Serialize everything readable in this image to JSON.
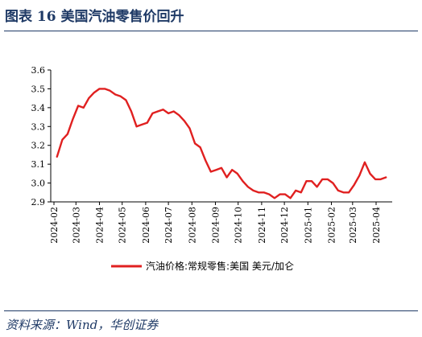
{
  "figure": {
    "title": "图表 16   美国汽油零售价回升",
    "source": "资料来源：Wind，华创证券"
  },
  "colors": {
    "accent": "#1f3a66",
    "series": "#e02020"
  },
  "chart_data": {
    "type": "line",
    "title": "",
    "xlabel": "",
    "ylabel": "",
    "ylim": [
      2.9,
      3.6
    ],
    "yticks": [
      2.9,
      3.0,
      3.1,
      3.2,
      3.3,
      3.4,
      3.5,
      3.6
    ],
    "ytick_labels": [
      "2.9",
      "3.0",
      "3.1",
      "3.2",
      "3.3",
      "3.4",
      "3.5",
      "3.6"
    ],
    "xticks": [
      "2024-02",
      "2024-03",
      "2024-04",
      "2024-05",
      "2024-06",
      "2024-07",
      "2024-08",
      "2024-09",
      "2024-10",
      "2024-11",
      "2024-12",
      "2025-01",
      "2025-02",
      "2025-03",
      "2025-04"
    ],
    "grid": false,
    "legend_position": "bottom",
    "series": [
      {
        "name": "汽油价格:常规零售:美国 美元/加仑",
        "points": [
          [
            "2024-02-05",
            3.14
          ],
          [
            "2024-02-12",
            3.23
          ],
          [
            "2024-02-19",
            3.26
          ],
          [
            "2024-02-26",
            3.34
          ],
          [
            "2024-03-04",
            3.41
          ],
          [
            "2024-03-11",
            3.4
          ],
          [
            "2024-03-18",
            3.45
          ],
          [
            "2024-03-25",
            3.48
          ],
          [
            "2024-04-01",
            3.5
          ],
          [
            "2024-04-08",
            3.5
          ],
          [
            "2024-04-15",
            3.49
          ],
          [
            "2024-04-22",
            3.47
          ],
          [
            "2024-04-29",
            3.46
          ],
          [
            "2024-05-06",
            3.44
          ],
          [
            "2024-05-13",
            3.38
          ],
          [
            "2024-05-20",
            3.3
          ],
          [
            "2024-05-27",
            3.31
          ],
          [
            "2024-06-03",
            3.32
          ],
          [
            "2024-06-10",
            3.37
          ],
          [
            "2024-06-17",
            3.38
          ],
          [
            "2024-06-24",
            3.39
          ],
          [
            "2024-07-01",
            3.37
          ],
          [
            "2024-07-08",
            3.38
          ],
          [
            "2024-07-15",
            3.36
          ],
          [
            "2024-07-22",
            3.33
          ],
          [
            "2024-07-29",
            3.29
          ],
          [
            "2024-08-05",
            3.21
          ],
          [
            "2024-08-12",
            3.19
          ],
          [
            "2024-08-19",
            3.12
          ],
          [
            "2024-08-26",
            3.06
          ],
          [
            "2024-09-02",
            3.07
          ],
          [
            "2024-09-09",
            3.08
          ],
          [
            "2024-09-16",
            3.03
          ],
          [
            "2024-09-23",
            3.07
          ],
          [
            "2024-09-30",
            3.05
          ],
          [
            "2024-10-07",
            3.01
          ],
          [
            "2024-10-14",
            2.98
          ],
          [
            "2024-10-21",
            2.96
          ],
          [
            "2024-10-28",
            2.95
          ],
          [
            "2024-11-04",
            2.95
          ],
          [
            "2024-11-11",
            2.94
          ],
          [
            "2024-11-18",
            2.92
          ],
          [
            "2024-11-25",
            2.94
          ],
          [
            "2024-12-02",
            2.94
          ],
          [
            "2024-12-09",
            2.92
          ],
          [
            "2024-12-16",
            2.96
          ],
          [
            "2024-12-23",
            2.95
          ],
          [
            "2024-12-30",
            3.01
          ],
          [
            "2025-01-06",
            3.01
          ],
          [
            "2025-01-13",
            2.98
          ],
          [
            "2025-01-20",
            3.02
          ],
          [
            "2025-01-27",
            3.02
          ],
          [
            "2025-02-03",
            3.0
          ],
          [
            "2025-02-10",
            2.96
          ],
          [
            "2025-02-17",
            2.95
          ],
          [
            "2025-02-24",
            2.95
          ],
          [
            "2025-03-03",
            2.99
          ],
          [
            "2025-03-10",
            3.04
          ],
          [
            "2025-03-17",
            3.11
          ],
          [
            "2025-03-24",
            3.05
          ],
          [
            "2025-03-31",
            3.02
          ],
          [
            "2025-04-07",
            3.02
          ],
          [
            "2025-04-14",
            3.03
          ]
        ]
      }
    ]
  }
}
